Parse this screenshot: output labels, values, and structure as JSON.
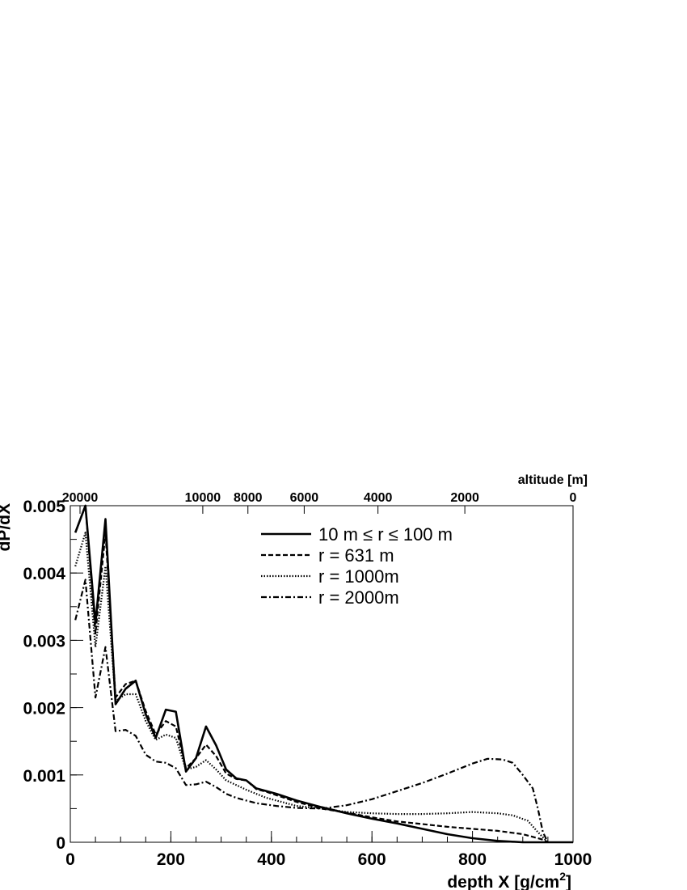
{
  "chart_data": {
    "type": "line",
    "xlabel": "depth X [g/cm",
    "xlabel_sup": "2",
    "xlabel_end": "]",
    "ylabel": "dP/dX",
    "top_axis_label": "altitude [m]",
    "xlim": [
      0,
      1000
    ],
    "ylim": [
      0,
      0.005
    ],
    "x_ticks": [
      {
        "v": 0,
        "label": "0"
      },
      {
        "v": 200,
        "label": "200"
      },
      {
        "v": 400,
        "label": "400"
      },
      {
        "v": 600,
        "label": "600"
      },
      {
        "v": 800,
        "label": "800"
      },
      {
        "v": 1000,
        "label": "1000"
      }
    ],
    "y_ticks": [
      {
        "v": 0,
        "label": "0"
      },
      {
        "v": 0.001,
        "label": "0.001"
      },
      {
        "v": 0.002,
        "label": "0.002"
      },
      {
        "v": 0.003,
        "label": "0.003"
      },
      {
        "v": 0.004,
        "label": "0.004"
      },
      {
        "v": 0.005,
        "label": "0.005"
      }
    ],
    "top_ticks": [
      {
        "depth": 20,
        "label": "20000"
      },
      {
        "depth": 273,
        "label": "10000"
      },
      {
        "depth": 366,
        "label": "8000"
      },
      {
        "depth": 482,
        "label": "6000"
      },
      {
        "depth": 634,
        "label": "4000"
      },
      {
        "depth": 813,
        "label": "2000"
      },
      {
        "depth": 1036,
        "label": "0"
      }
    ],
    "grid": false,
    "legend_position": "top-center",
    "series": [
      {
        "name": "10 m ≤ r ≤ 100 m",
        "dash": "solid",
        "x": [
          10,
          30,
          50,
          70,
          90,
          110,
          130,
          150,
          170,
          190,
          210,
          230,
          250,
          270,
          290,
          310,
          330,
          350,
          370,
          390,
          410,
          450,
          500,
          550,
          600,
          650,
          700,
          750,
          800,
          850,
          900,
          950,
          1000
        ],
        "y": [
          0.0046,
          0.005,
          0.00325,
          0.0048,
          0.00205,
          0.00228,
          0.0024,
          0.0019,
          0.00155,
          0.00197,
          0.00194,
          0.00105,
          0.00125,
          0.00172,
          0.00144,
          0.00108,
          0.00095,
          0.00092,
          0.0008,
          0.00076,
          0.00072,
          0.00062,
          0.00052,
          0.00043,
          0.00035,
          0.00028,
          0.0002,
          0.00012,
          6e-05,
          2e-05,
          0.0,
          0.0,
          0.0
        ]
      },
      {
        "name": "r = 631 m",
        "dash": "dashed",
        "x": [
          10,
          30,
          50,
          70,
          90,
          110,
          130,
          150,
          170,
          190,
          210,
          230,
          250,
          270,
          290,
          310,
          330,
          350,
          370,
          390,
          410,
          450,
          500,
          550,
          600,
          650,
          700,
          750,
          800,
          850,
          900,
          940,
          950
        ],
        "y": [
          0.0046,
          0.005,
          0.0031,
          0.0046,
          0.00215,
          0.00235,
          0.0024,
          0.00195,
          0.0016,
          0.0018,
          0.00172,
          0.0011,
          0.00125,
          0.00145,
          0.00128,
          0.00102,
          0.00094,
          0.00092,
          0.00079,
          0.00075,
          0.0007,
          0.0006,
          0.0005,
          0.00044,
          0.00037,
          0.00031,
          0.00027,
          0.00023,
          0.0002,
          0.00017,
          0.00012,
          4e-05,
          0.0
        ]
      },
      {
        "name": "r = 1000m",
        "dash": "dotted",
        "x": [
          10,
          30,
          50,
          70,
          90,
          110,
          130,
          150,
          170,
          190,
          210,
          230,
          250,
          270,
          290,
          310,
          330,
          350,
          370,
          390,
          410,
          450,
          500,
          550,
          600,
          650,
          700,
          750,
          800,
          850,
          880,
          910,
          930,
          950
        ],
        "y": [
          0.0041,
          0.0046,
          0.0029,
          0.0041,
          0.0021,
          0.0022,
          0.0022,
          0.0018,
          0.00152,
          0.0016,
          0.00155,
          0.00108,
          0.00112,
          0.00122,
          0.00108,
          0.00092,
          0.00085,
          0.00078,
          0.00072,
          0.00066,
          0.00062,
          0.00054,
          0.0005,
          0.00045,
          0.00043,
          0.00042,
          0.00042,
          0.00043,
          0.00045,
          0.00043,
          0.0004,
          0.00032,
          0.00015,
          0.0
        ]
      },
      {
        "name": "r = 2000m",
        "dash": "dashdot",
        "x": [
          10,
          30,
          50,
          70,
          90,
          110,
          130,
          150,
          170,
          190,
          210,
          230,
          250,
          270,
          290,
          310,
          330,
          350,
          370,
          390,
          410,
          450,
          500,
          550,
          600,
          650,
          700,
          750,
          800,
          830,
          860,
          880,
          900,
          920,
          930,
          940,
          950
        ],
        "y": [
          0.0033,
          0.0039,
          0.00215,
          0.0029,
          0.00165,
          0.00167,
          0.00158,
          0.0013,
          0.0012,
          0.00118,
          0.0011,
          0.00085,
          0.00086,
          0.0009,
          0.00082,
          0.00072,
          0.00066,
          0.00062,
          0.00058,
          0.00056,
          0.00054,
          0.00051,
          0.0005,
          0.00055,
          0.00064,
          0.00076,
          0.00088,
          0.00102,
          0.00117,
          0.00124,
          0.00123,
          0.00118,
          0.001,
          0.0008,
          0.0005,
          0.00015,
          0.0
        ]
      }
    ]
  }
}
